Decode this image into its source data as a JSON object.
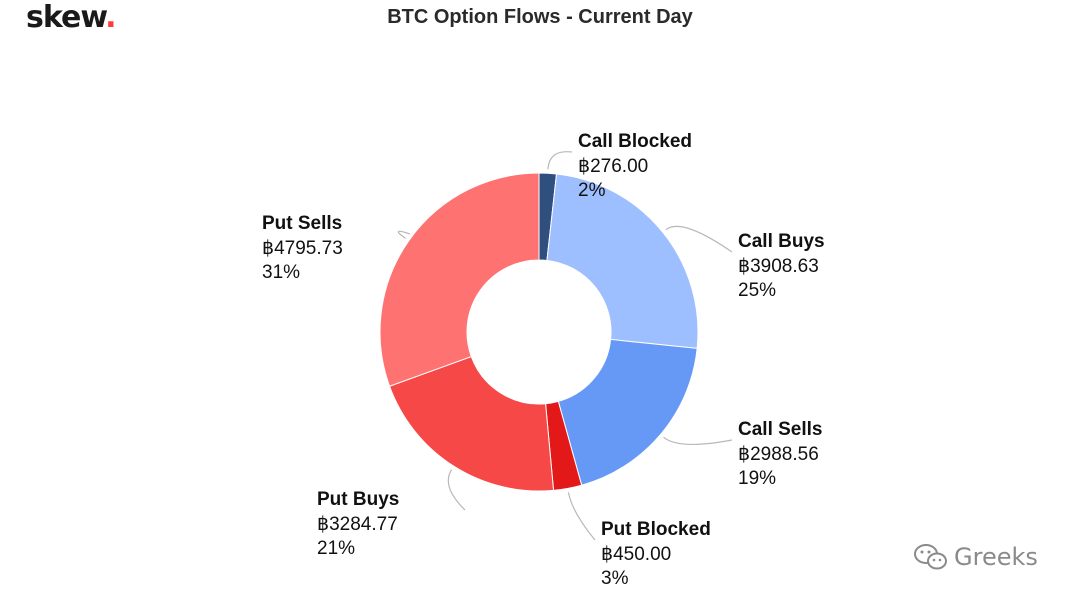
{
  "brand": {
    "name": "skew",
    "dot": "."
  },
  "watermark": {
    "text": "Greeks",
    "icon": "wechat-icon"
  },
  "chart_data": {
    "type": "pie",
    "title": "BTC Option Flows - Current Day",
    "donut": true,
    "slices": [
      {
        "label": "Call Blocked",
        "value": 276.0,
        "display": "฿276.00",
        "percent": "2%",
        "color": "#2f4f7f"
      },
      {
        "label": "Call Buys",
        "value": 3908.63,
        "display": "฿3908.63",
        "percent": "25%",
        "color": "#9ebfff"
      },
      {
        "label": "Call Sells",
        "value": 2988.56,
        "display": "฿2988.56",
        "percent": "19%",
        "color": "#6699f5"
      },
      {
        "label": "Put Blocked",
        "value": 450.0,
        "display": "฿450.00",
        "percent": "3%",
        "color": "#e31919"
      },
      {
        "label": "Put Buys",
        "value": 3284.77,
        "display": "฿3284.77",
        "percent": "21%",
        "color": "#f74848"
      },
      {
        "label": "Put Sells",
        "value": 4795.73,
        "display": "฿4795.73",
        "percent": "31%",
        "color": "#ff7272"
      }
    ]
  }
}
